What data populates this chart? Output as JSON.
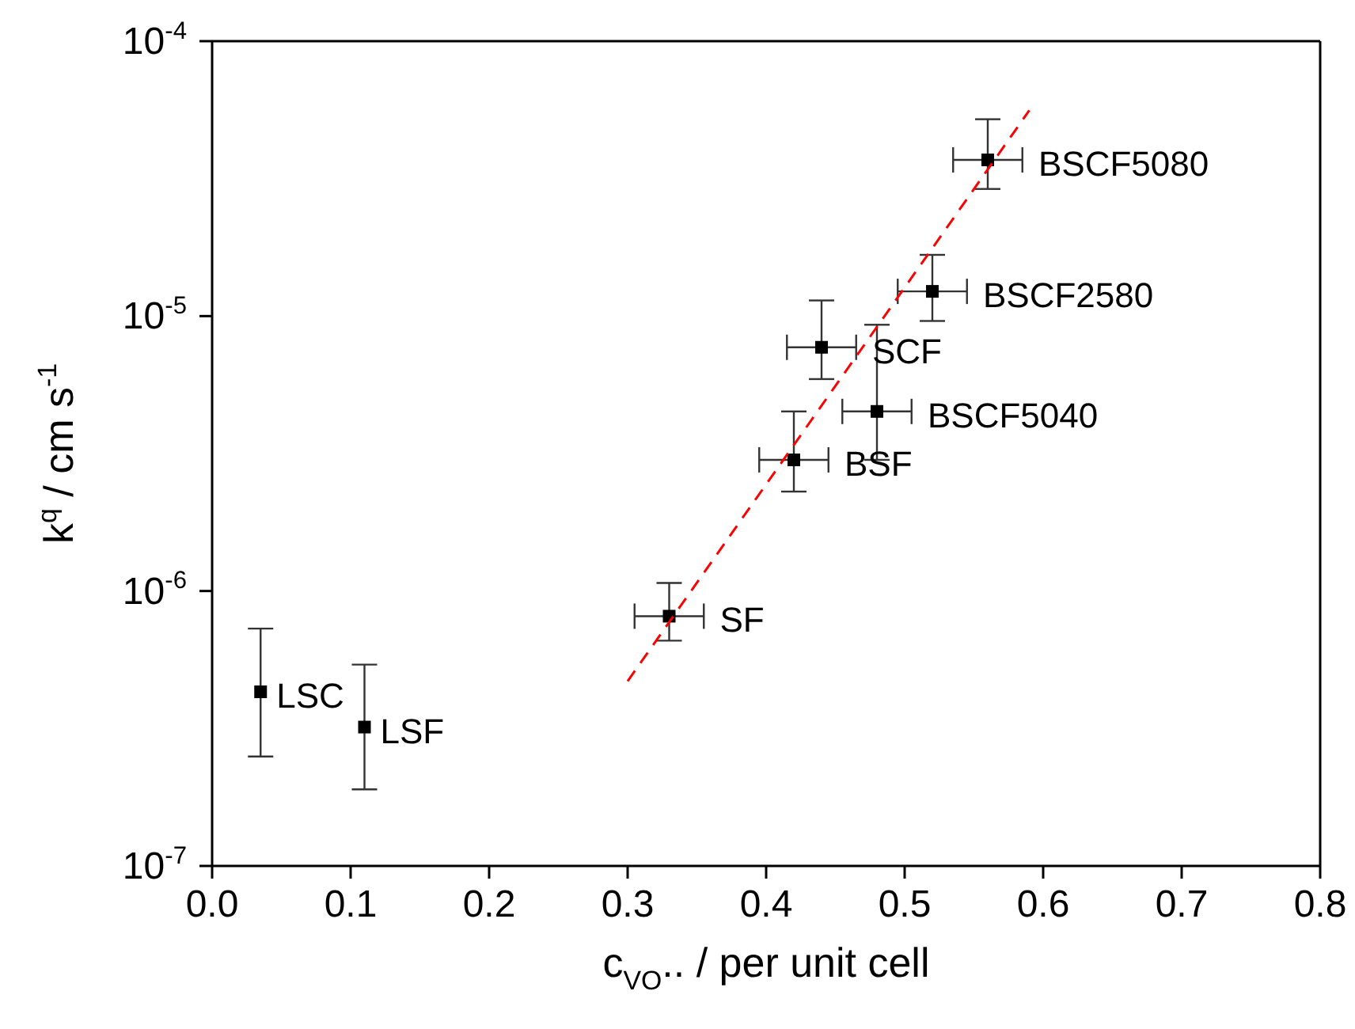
{
  "chart_data": {
    "type": "scatter",
    "xlabel": "c$_{VO}$.. /  per unit cell",
    "ylabel": "k$^{q}$ / cm s$^{-1}$",
    "xlim": [
      0,
      0.8
    ],
    "xticks": [
      {
        "value": 0,
        "label": "0.0"
      },
      0.1,
      0.2,
      0.3,
      0.4,
      0.5,
      0.6,
      0.7,
      0.8
    ],
    "ylim": [
      1e-07,
      0.0001
    ],
    "yticks": [
      {
        "value": 1e-07,
        "label": "10$^{-7}$"
      },
      {
        "value": 1e-06,
        "label": "10$^{-6}$"
      },
      {
        "value": 1e-05,
        "label": "10$^{-5}$"
      },
      {
        "value": 0.0001,
        "label": "10$^{-4}$"
      }
    ],
    "log": "y",
    "legend": false,
    "marker": "square",
    "series": [
      {
        "color": "#000000",
        "x": [
          0.035,
          0.11,
          0.33,
          0.42,
          0.44,
          0.48,
          0.52,
          0.56
        ],
        "values": [
          4.3e-07,
          3.2e-07,
          8.1e-07,
          3e-06,
          7.7e-06,
          4.5e-06,
          1.23e-05,
          3.7e-05
        ],
        "errors": [
          [
            2.5e-07,
            7.3e-07
          ],
          [
            1.9e-07,
            5.4e-07
          ],
          [
            6.6e-07,
            1.07e-06
          ],
          [
            2.3e-06,
            4.5e-06
          ],
          [
            5.9e-06,
            1.14e-05
          ],
          [
            3e-06,
            9.3e-06
          ],
          [
            9.6e-06,
            1.67e-05
          ],
          [
            2.9e-05,
            5.2e-05
          ]
        ],
        "xerrors": [
          null,
          null,
          0.025,
          0.025,
          0.025,
          0.025,
          0.025,
          0.025
        ]
      },
      {
        "type": "line",
        "color": "#ff0000",
        "line_style": "dashed",
        "marker": "none",
        "x": [
          0.3,
          0.59
        ],
        "values": [
          4.7e-07,
          5.6e-05
        ]
      }
    ],
    "annotations": [
      {
        "text": "LSC",
        "x": 0.035,
        "y": 4.3e-07
      },
      {
        "text": "LSF",
        "x": 0.11,
        "y": 3.2e-07
      },
      {
        "text": "SF",
        "x": 0.33,
        "y": 8.1e-07
      },
      {
        "text": "BSF",
        "x": 0.42,
        "y": 3e-06
      },
      {
        "text": "SCF",
        "x": 0.44,
        "y": 7.7e-06
      },
      {
        "text": "BSCF5040",
        "x": 0.48,
        "y": 4.5e-06
      },
      {
        "text": "BSCF2580",
        "x": 0.52,
        "y": 1.23e-05
      },
      {
        "text": "BSCF5080",
        "x": 0.56,
        "y": 3.7e-05
      }
    ]
  }
}
